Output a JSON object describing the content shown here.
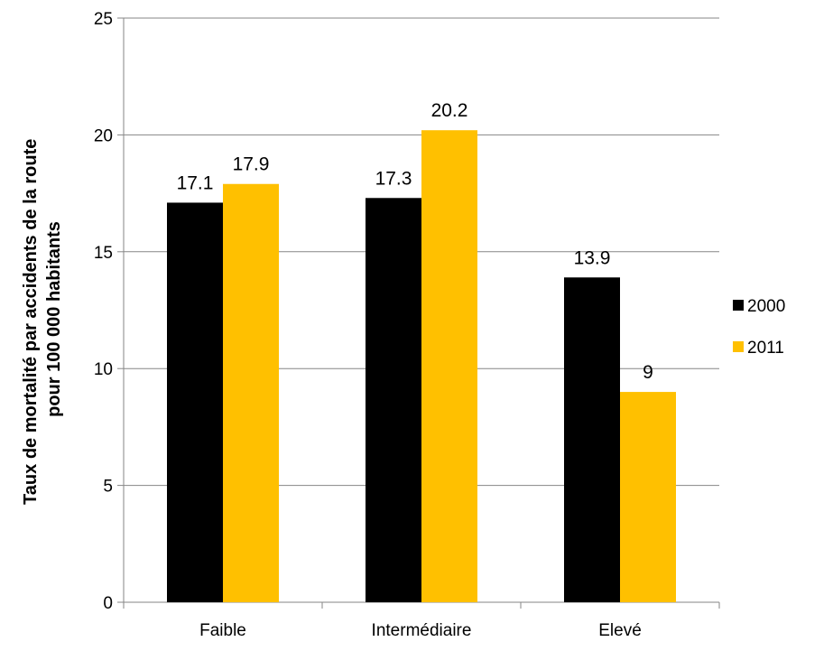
{
  "chart_data": {
    "type": "bar",
    "categories": [
      "Faible",
      "Intermédiaire",
      "Elevé"
    ],
    "series": [
      {
        "name": "2000",
        "values": [
          17.1,
          17.3,
          13.9
        ],
        "color": "#000000"
      },
      {
        "name": "2011",
        "values": [
          17.9,
          20.2,
          9
        ],
        "color": "#FFC000"
      }
    ],
    "title": "",
    "xlabel": "",
    "ylabel_lines": [
      "Taux de mortalité par accidents de la route",
      "pour 100 000 habitants"
    ],
    "ylim": [
      0,
      25
    ],
    "yticks": [
      0,
      5,
      10,
      15,
      20,
      25
    ],
    "grid": true,
    "legend": "right",
    "data_labels": [
      "17.1",
      "17.9",
      "17.3",
      "20.2",
      "13.9",
      "9"
    ]
  }
}
